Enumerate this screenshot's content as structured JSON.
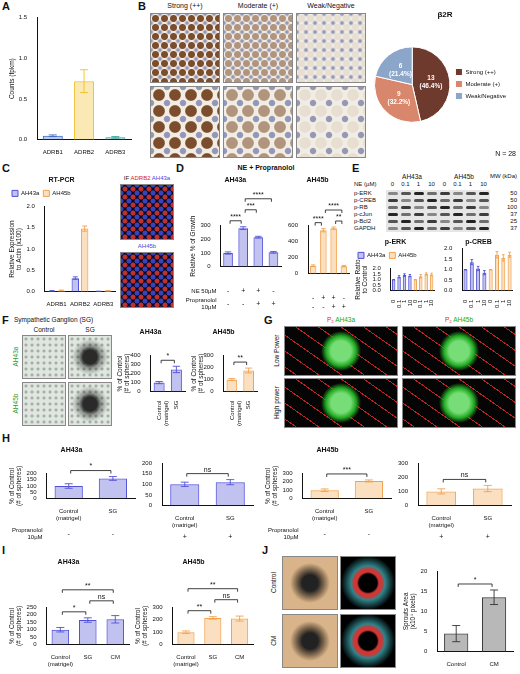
{
  "panels": [
    "A",
    "B",
    "C",
    "D",
    "E",
    "F",
    "G",
    "H",
    "I",
    "J"
  ],
  "headings": [
    "NE + Propranolol"
  ],
  "images": [
    {
      "columns": [
        "Strong (++)",
        "Moderate (+)",
        "Weak/Negative"
      ]
    },
    {
      "labels": [
        [
          "IF",
          "ADRB2",
          "AH43a"
        ],
        [
          "AH45b"
        ]
      ]
    },
    {
      "title": "Sympathetic Ganglion (SG)",
      "columns": [
        "Control",
        "SG"
      ],
      "rows": [
        "AH43a",
        "AH45b"
      ]
    },
    {
      "columns": [
        [
          "P₂",
          "AH43a"
        ],
        [
          "P₂",
          "AH45b"
        ]
      ],
      "rows": [
        "Low Power",
        "High power"
      ]
    },
    {
      "rows": [
        "Control",
        "CM"
      ]
    }
  ],
  "blot": {
    "header": "NE (µM)",
    "groups": [
      "AH43a",
      "AH45b"
    ],
    "lanes": [
      "0",
      "0.1",
      "1",
      "10"
    ],
    "mw_header": "MW (kDa)",
    "rows": [
      {
        "label": "p-ERK",
        "mw": 50
      },
      {
        "label": "p-CREB",
        "mw": 50
      },
      {
        "label": "p-RB",
        "mw": 100
      },
      {
        "label": "p-cJun",
        "mw": 37
      },
      {
        "label": "p-Bcl2",
        "mw": 25
      },
      {
        "label": "GAPDH",
        "mw": 37
      }
    ]
  },
  "chart_data": [
    {
      "type": "bar",
      "y_label": "Counts (fpkm)",
      "categories": [
        "ADRB1",
        "ADRB2",
        "ADRB3"
      ],
      "values": [
        0.05,
        0.72,
        0.03
      ],
      "errors": [
        0.01,
        0.14,
        0.01
      ],
      "colors": [
        "#3d6cc8",
        "#f0c02a",
        "#3aa6a0"
      ],
      "ylim": [
        0,
        1.5
      ],
      "yticks": [
        {
          "value": 0,
          "label": "0.0"
        },
        {
          "value": 0.5,
          "label": "0.5"
        },
        {
          "value": 1,
          "label": "1.0"
        },
        {
          "value": 1.5,
          "label": "1.5"
        }
      ],
      "grid": false
    },
    {
      "type": "pie",
      "title": "β2R",
      "categories": [
        "Strong (++)",
        "Moderate (+)",
        "Weak/Negative"
      ],
      "values": [
        13,
        9,
        6
      ],
      "value_labels": [
        "13 (46.4%)",
        "9 (32.2%)",
        "6 (21.4%)"
      ],
      "colors": [
        "#6e3a2e",
        "#d8876c",
        "#8ba6c9"
      ],
      "annotations": [
        "N = 28"
      ],
      "legend": "right"
    },
    {
      "type": "bar",
      "title": "RT-PCR",
      "y_label": "Relative Expression to Actin (x100)",
      "categories": [
        "ADRB1",
        "ADRB2",
        "ADRB3"
      ],
      "series": [
        {
          "name": "AH43a",
          "color": "#5050d8",
          "values": [
            0.02,
            0.32,
            0.01
          ],
          "errors": [
            0.01,
            0.03,
            0.005
          ]
        },
        {
          "name": "AH45b",
          "color": "#f2a24e",
          "values": [
            0.03,
            1.48,
            0.02
          ],
          "errors": [
            0.01,
            0.06,
            0.01
          ]
        }
      ],
      "ylim": [
        0,
        2
      ],
      "yticks": [
        {
          "value": 0,
          "label": "0.0"
        },
        {
          "value": 0.5,
          "label": "0.5"
        },
        {
          "value": 1,
          "label": "1.0"
        },
        {
          "value": 1.5,
          "label": "1.5"
        },
        {
          "value": 2,
          "label": "2.0"
        }
      ],
      "legend": "top",
      "grid": false
    },
    {
      "type": "bar",
      "title": "AH43a",
      "y_label": "Relative % of Growth",
      "categories": [
        null,
        null,
        null,
        null
      ],
      "x_rows": [
        {
          "label": "NE 50µM",
          "values": [
            "-",
            "+",
            "+",
            "-"
          ]
        },
        {
          "label": "Propranolol 10µM",
          "values": [
            "-",
            "-",
            "+",
            "+"
          ]
        }
      ],
      "values": [
        100,
        280,
        215,
        105
      ],
      "errors": [
        8,
        10,
        6,
        6
      ],
      "color": "#5050d8",
      "ylim": [
        0,
        300
      ],
      "yticks": [
        0,
        100,
        200,
        300
      ],
      "significance": [
        {
          "from": 0,
          "to": 1,
          "label": "****"
        },
        {
          "from": 1,
          "to": 2,
          "label": "***"
        },
        {
          "from": 1,
          "to": 3,
          "label": "****"
        }
      ],
      "grid": false
    },
    {
      "type": "bar",
      "title": "AH45b",
      "categories": [
        null,
        null,
        null,
        null
      ],
      "x_rows": [
        {
          "values": [
            "-",
            "+",
            "+",
            "-"
          ]
        },
        {
          "values": [
            "-",
            "-",
            "+",
            "+"
          ]
        }
      ],
      "values": [
        100,
        540,
        565,
        95
      ],
      "errors": [
        10,
        20,
        15,
        8
      ],
      "color": "#f2a24e",
      "ylim": [
        0,
        600
      ],
      "yticks": [
        0,
        200,
        400,
        600
      ],
      "significance": [
        {
          "from": 0,
          "to": 1,
          "label": "****"
        },
        {
          "from": 2,
          "to": 3,
          "label": "**"
        },
        {
          "from": 1,
          "to": 3,
          "label": "****"
        }
      ],
      "grid": false
    },
    {
      "type": "bar",
      "title": "p-ERK",
      "y_label": "Relative Ratio to Control",
      "categories": [
        "0",
        "0.1",
        "1",
        "10",
        "0",
        "0.1",
        "1",
        "10"
      ],
      "series": [
        {
          "name": "AH43a",
          "color": "#5050d8",
          "values": [
            1.0,
            1.25,
            1.4,
            1.35,
            null,
            null,
            null,
            null
          ],
          "errors": [
            0,
            0.1,
            0.12,
            0.1,
            null,
            null,
            null,
            null
          ]
        },
        {
          "name": "AH45b",
          "color": "#f2a24e",
          "values": [
            null,
            null,
            null,
            null,
            1.0,
            1.3,
            1.5,
            1.45
          ],
          "errors": [
            null,
            null,
            null,
            null,
            0,
            0.15,
            0.1,
            0.12
          ]
        }
      ],
      "ylim": [
        0,
        2
      ],
      "yticks": [
        {
          "value": 0,
          "label": "0.0"
        },
        {
          "value": 0.5,
          "label": "0.5"
        },
        {
          "value": 1,
          "label": "1.0"
        },
        {
          "value": 1.5,
          "label": "1.5"
        },
        {
          "value": 2,
          "label": "2.0"
        }
      ],
      "legend": "top",
      "grid": false
    },
    {
      "type": "bar",
      "title": "p-CREB",
      "categories": [
        "0",
        "0.1",
        "1",
        "10",
        "0",
        "0.1",
        "1",
        "10"
      ],
      "series": [
        {
          "color": "#5050d8",
          "values": [
            1.0,
            1.35,
            1.05,
            0.85,
            null,
            null,
            null,
            null
          ],
          "errors": [
            0,
            0.12,
            0.1,
            0.1,
            null,
            null,
            null,
            null
          ]
        },
        {
          "color": "#f2a24e",
          "values": [
            null,
            null,
            null,
            null,
            1.0,
            1.7,
            1.55,
            1.7
          ],
          "errors": [
            null,
            null,
            null,
            null,
            0,
            0.15,
            0.15,
            0.12
          ]
        }
      ],
      "ylim": [
        0,
        2
      ],
      "yticks": [
        {
          "value": 0,
          "label": "0.0"
        },
        {
          "value": 0.5,
          "label": "0.5"
        },
        {
          "value": 1,
          "label": "1.0"
        },
        {
          "value": 1.5,
          "label": "1.5"
        },
        {
          "value": 2,
          "label": "2.0"
        }
      ],
      "grid": false
    },
    {
      "type": "bar",
      "title": "AH43a",
      "y_label": "% of Control (# of spheres)",
      "categories": [
        "Control (matrigel)",
        "SG"
      ],
      "values": [
        100,
        245
      ],
      "errors": [
        12,
        35
      ],
      "color": "#5050d8",
      "ylim": [
        0,
        400
      ],
      "yticks": [
        0,
        100,
        200,
        300,
        400
      ],
      "significance": [
        {
          "from": 0,
          "to": 1,
          "label": "*"
        }
      ],
      "grid": false
    },
    {
      "type": "bar",
      "title": "AH45b",
      "y_label": "% of Control (# of spheres)",
      "categories": [
        "Control (matrigel)",
        "SG"
      ],
      "values": [
        100,
        175
      ],
      "errors": [
        8,
        20
      ],
      "color": "#f2a24e",
      "ylim": [
        0,
        300
      ],
      "yticks": [
        0,
        100,
        200,
        300
      ],
      "significance": [
        {
          "from": 0,
          "to": 1,
          "label": "**"
        }
      ],
      "grid": false
    },
    {
      "type": "bar",
      "title": "AH43a",
      "y_label": "% of Control (# of spheres)",
      "categories": [
        "Control (matrigel)",
        "SG"
      ],
      "x_rows": [
        {
          "label": "Propranolol 10µM",
          "values": [
            "-",
            "-"
          ]
        }
      ],
      "values": [
        100,
        160
      ],
      "errors": [
        18,
        15
      ],
      "color": "#5050d8",
      "ylim": [
        0,
        200
      ],
      "yticks": [
        0,
        50,
        100,
        150,
        200
      ],
      "significance": [
        {
          "from": 0,
          "to": 1,
          "label": "*"
        }
      ],
      "grid": false
    },
    {
      "type": "bar",
      "categories": [
        "Control (matrigel)",
        "SG"
      ],
      "x_rows": [
        {
          "values": [
            "+",
            "+"
          ]
        }
      ],
      "values": [
        100,
        110
      ],
      "errors": [
        10,
        12
      ],
      "color": "#5050d8",
      "ylim": [
        0,
        200
      ],
      "yticks": [
        0,
        50,
        100,
        150,
        200
      ],
      "significance": [
        {
          "from": 0,
          "to": 1,
          "label": "ns"
        }
      ],
      "grid": false
    },
    {
      "type": "bar",
      "title": "AH45b",
      "y_label": "% of Control (# of spheres)",
      "categories": [
        "Control (matrigel)",
        "SG"
      ],
      "x_rows": [
        {
          "label": "Propranolol 10µM",
          "values": [
            "-",
            "-"
          ]
        }
      ],
      "values": [
        100,
        210
      ],
      "errors": [
        15,
        12
      ],
      "color": "#f2a24e",
      "ylim": [
        0,
        300
      ],
      "yticks": [
        0,
        100,
        200,
        300
      ],
      "significance": [
        {
          "from": 0,
          "to": 1,
          "label": "***"
        }
      ],
      "grid": false
    },
    {
      "type": "bar",
      "categories": [
        "Control (matrigel)",
        "SG"
      ],
      "x_rows": [
        {
          "values": [
            "+",
            "+"
          ]
        }
      ],
      "values": [
        100,
        120
      ],
      "errors": [
        18,
        22
      ],
      "color": "#f2a24e",
      "ylim": [
        0,
        300
      ],
      "yticks": [
        0,
        100,
        200,
        300
      ],
      "significance": [
        {
          "from": 0,
          "to": 1,
          "label": "ns"
        }
      ],
      "grid": false
    },
    {
      "type": "bar",
      "title": "AH43a",
      "y_label": "% of Control (# of spheres)",
      "categories": [
        "Control (matrigel)",
        "SG",
        "CM"
      ],
      "values": [
        100,
        165,
        170
      ],
      "errors": [
        15,
        15,
        25
      ],
      "color": "#5050d8",
      "ylim": [
        0,
        250
      ],
      "yticks": [
        0,
        50,
        100,
        150,
        200,
        250
      ],
      "significance": [
        {
          "from": 0,
          "to": 1,
          "label": "*"
        },
        {
          "from": 0,
          "to": 2,
          "label": "**"
        },
        {
          "from": 1,
          "to": 2,
          "label": "ns"
        }
      ],
      "grid": false
    },
    {
      "type": "bar",
      "title": "AH45b",
      "y_label": "% of Control (# of spheres)",
      "categories": [
        "Control (matrigel)",
        "SG",
        "CM"
      ],
      "values": [
        100,
        215,
        210
      ],
      "errors": [
        10,
        10,
        20
      ],
      "color": "#f2a24e",
      "ylim": [
        0,
        300
      ],
      "yticks": [
        0,
        100,
        200,
        300
      ],
      "significance": [
        {
          "from": 0,
          "to": 1,
          "label": "**"
        },
        {
          "from": 0,
          "to": 2,
          "label": "**"
        },
        {
          "from": 1,
          "to": 2,
          "label": "ns"
        }
      ],
      "grid": false
    },
    {
      "type": "bar",
      "y_label": "Sprouts Area (x10⁴ pixels)",
      "categories": [
        "Control",
        "CM"
      ],
      "values": [
        4.5,
        13.5
      ],
      "errors": [
        2,
        1.8
      ],
      "color": "#333333",
      "ylim": [
        0,
        20
      ],
      "yticks": [
        0,
        5,
        10,
        15,
        20
      ],
      "significance": [
        {
          "from": 0,
          "to": 1,
          "label": "*"
        }
      ],
      "grid": false
    }
  ]
}
